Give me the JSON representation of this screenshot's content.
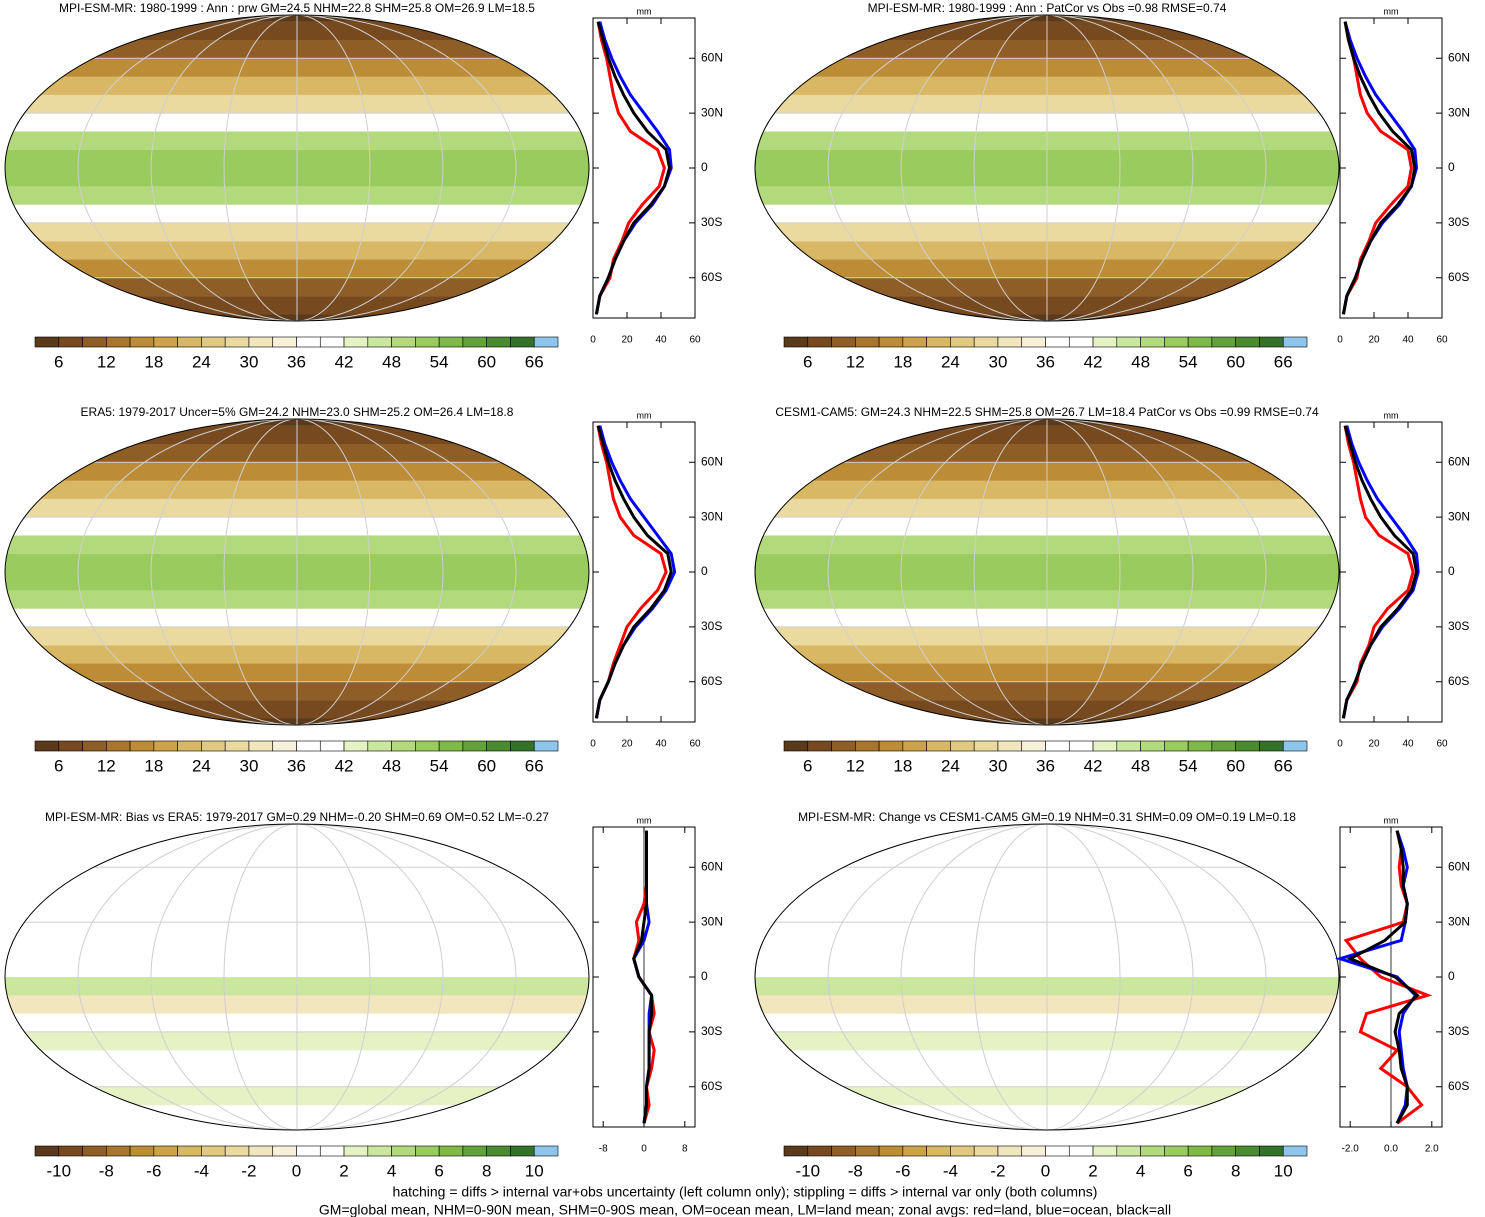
{
  "panels": [
    {
      "title": "MPI-ESM-MR: 1980-1999 : Ann : prw GM=24.5 NHM=22.8 SHM=25.8 OM=26.9 LM=18.5",
      "colorbar": {
        "colors": [
          "#5a3a1b",
          "#76491f",
          "#8f5d26",
          "#a8752e",
          "#bd8c36",
          "#cca24a",
          "#d8b765",
          "#e2c982",
          "#eadaa0",
          "#f1e6bd",
          "#f7f1da",
          "#ffffff",
          "#ffffff",
          "#e4f2c4",
          "#cbe69e",
          "#b2d97c",
          "#99cb5e",
          "#7fba48",
          "#63a23a",
          "#4a8a30",
          "#34722a",
          "#8ec5ec"
        ],
        "labels": [
          6,
          12,
          18,
          24,
          30,
          36,
          42,
          48,
          54,
          60,
          66
        ]
      },
      "profile": {
        "unit": "mm",
        "xlim": [
          0,
          60
        ],
        "xticks": [
          0,
          20,
          40,
          60
        ],
        "ylim": [
          -82,
          82
        ],
        "yticks": [
          {
            "value": -60,
            "label": "60S"
          },
          {
            "value": -30,
            "label": "30S"
          },
          0,
          {
            "value": 30,
            "label": "30N"
          },
          {
            "value": 60,
            "label": "60N"
          }
        ],
        "lat": [
          -80,
          -70,
          -60,
          -50,
          -40,
          -30,
          -20,
          -10,
          0,
          10,
          20,
          30,
          40,
          50,
          60,
          70,
          80
        ],
        "series": [
          {
            "color": "#ff0000",
            "values": [
              2,
              4,
              10,
              12,
              17,
              21,
              29,
              39,
              42,
              38,
              22,
              15,
              12,
              10,
              8,
              5,
              3
            ]
          },
          {
            "color": "#0000ff",
            "values": [
              2,
              4,
              9,
              13,
              18,
              25,
              35,
              42,
              46,
              45,
              38,
              30,
              22,
              16,
              11,
              7,
              4
            ]
          },
          {
            "color": "#000000",
            "values": [
              2,
              4,
              9,
              13,
              18,
              24,
              34,
              42,
              45,
              43,
              32,
              24,
              18,
              13,
              9,
              6,
              3
            ]
          }
        ]
      }
    },
    {
      "title": "MPI-ESM-MR: 1980-1999 : Ann : PatCor vs Obs =0.98 RMSE=0.74",
      "colorbar": {
        "colors": [
          "#5a3a1b",
          "#76491f",
          "#8f5d26",
          "#a8752e",
          "#bd8c36",
          "#cca24a",
          "#d8b765",
          "#e2c982",
          "#eadaa0",
          "#f1e6bd",
          "#f7f1da",
          "#ffffff",
          "#ffffff",
          "#e4f2c4",
          "#cbe69e",
          "#b2d97c",
          "#99cb5e",
          "#7fba48",
          "#63a23a",
          "#4a8a30",
          "#34722a",
          "#8ec5ec"
        ],
        "labels": [
          6,
          12,
          18,
          24,
          30,
          36,
          42,
          48,
          54,
          60,
          66
        ]
      },
      "profile": {
        "unit": "mm",
        "xlim": [
          0,
          60
        ],
        "xticks": [
          0,
          20,
          40,
          60
        ],
        "ylim": [
          -82,
          82
        ],
        "yticks": [
          {
            "value": -60,
            "label": "60S"
          },
          {
            "value": -30,
            "label": "30S"
          },
          0,
          {
            "value": 30,
            "label": "30N"
          },
          {
            "value": 60,
            "label": "60N"
          }
        ],
        "lat": [
          -80,
          -70,
          -60,
          -50,
          -40,
          -30,
          -20,
          -10,
          0,
          10,
          20,
          30,
          40,
          50,
          60,
          70,
          80
        ],
        "series": [
          {
            "color": "#ff0000",
            "values": [
              2,
              4,
              10,
              12,
              17,
              21,
              30,
              40,
              42,
              40,
              24,
              16,
              12,
              10,
              8,
              5,
              3
            ]
          },
          {
            "color": "#0000ff",
            "values": [
              2,
              4,
              9,
              13,
              18,
              25,
              35,
              42,
              45,
              44,
              37,
              29,
              21,
              15,
              10,
              6,
              3
            ]
          },
          {
            "color": "#000000",
            "values": [
              2,
              4,
              9,
              13,
              18,
              24,
              34,
              42,
              44,
              42,
              31,
              23,
              17,
              12,
              8,
              5,
              3
            ]
          }
        ]
      }
    },
    {
      "title": "ERA5: 1979-2017 Uncer=5% GM=24.2 NHM=23.0 SHM=25.2 OM=26.4 LM=18.8",
      "colorbar": {
        "colors": [
          "#5a3a1b",
          "#76491f",
          "#8f5d26",
          "#a8752e",
          "#bd8c36",
          "#cca24a",
          "#d8b765",
          "#e2c982",
          "#eadaa0",
          "#f1e6bd",
          "#f7f1da",
          "#ffffff",
          "#ffffff",
          "#e4f2c4",
          "#cbe69e",
          "#b2d97c",
          "#99cb5e",
          "#7fba48",
          "#63a23a",
          "#4a8a30",
          "#34722a",
          "#8ec5ec"
        ],
        "labels": [
          6,
          12,
          18,
          24,
          30,
          36,
          42,
          48,
          54,
          60,
          66
        ]
      },
      "profile": {
        "unit": "mm",
        "xlim": [
          0,
          60
        ],
        "xticks": [
          0,
          20,
          40,
          60
        ],
        "ylim": [
          -82,
          82
        ],
        "yticks": [
          {
            "value": -60,
            "label": "60S"
          },
          {
            "value": -30,
            "label": "30S"
          },
          0,
          {
            "value": 30,
            "label": "30N"
          },
          {
            "value": 60,
            "label": "60N"
          }
        ],
        "lat": [
          -80,
          -70,
          -60,
          -50,
          -40,
          -30,
          -20,
          -10,
          0,
          10,
          20,
          30,
          40,
          50,
          60,
          70,
          80
        ],
        "series": [
          {
            "color": "#ff0000",
            "values": [
              2,
              4,
              9,
              12,
              16,
              20,
              28,
              38,
              43,
              40,
              24,
              16,
              12,
              10,
              8,
              5,
              3
            ]
          },
          {
            "color": "#0000ff",
            "values": [
              2,
              4,
              9,
              13,
              18,
              25,
              35,
              43,
              48,
              46,
              38,
              30,
              22,
              16,
              11,
              7,
              4
            ]
          },
          {
            "color": "#000000",
            "values": [
              2,
              4,
              9,
              13,
              18,
              24,
              34,
              42,
              46,
              44,
              32,
              24,
              18,
              13,
              9,
              6,
              3
            ]
          }
        ]
      }
    },
    {
      "title": "CESM1-CAM5: GM=24.3 NHM=22.5 SHM=25.8 OM=26.7 LM=18.4 PatCor vs Obs =0.99 RMSE=0.74",
      "colorbar": {
        "colors": [
          "#5a3a1b",
          "#76491f",
          "#8f5d26",
          "#a8752e",
          "#bd8c36",
          "#cca24a",
          "#d8b765",
          "#e2c982",
          "#eadaa0",
          "#f1e6bd",
          "#f7f1da",
          "#ffffff",
          "#ffffff",
          "#e4f2c4",
          "#cbe69e",
          "#b2d97c",
          "#99cb5e",
          "#7fba48",
          "#63a23a",
          "#4a8a30",
          "#34722a",
          "#8ec5ec"
        ],
        "labels": [
          6,
          12,
          18,
          24,
          30,
          36,
          42,
          48,
          54,
          60,
          66
        ]
      },
      "profile": {
        "unit": "mm",
        "xlim": [
          0,
          60
        ],
        "xticks": [
          0,
          20,
          40,
          60
        ],
        "ylim": [
          -82,
          82
        ],
        "yticks": [
          {
            "value": -60,
            "label": "60S"
          },
          {
            "value": -30,
            "label": "30S"
          },
          0,
          {
            "value": 30,
            "label": "30N"
          },
          {
            "value": 60,
            "label": "60N"
          }
        ],
        "lat": [
          -80,
          -70,
          -60,
          -50,
          -40,
          -30,
          -20,
          -10,
          0,
          10,
          20,
          30,
          40,
          50,
          60,
          70,
          80
        ],
        "series": [
          {
            "color": "#ff0000",
            "values": [
              2,
              4,
              10,
              12,
              17,
              20,
              28,
              40,
              43,
              40,
              23,
              15,
              12,
              10,
              8,
              5,
              3
            ]
          },
          {
            "color": "#0000ff",
            "values": [
              2,
              4,
              9,
              13,
              18,
              25,
              35,
              43,
              46,
              45,
              38,
              30,
              22,
              16,
              11,
              7,
              4
            ]
          },
          {
            "color": "#000000",
            "values": [
              2,
              4,
              9,
              13,
              18,
              24,
              34,
              42,
              45,
              43,
              32,
              24,
              18,
              13,
              9,
              6,
              3
            ]
          }
        ]
      }
    },
    {
      "title": "MPI-ESM-MR: Bias vs ERA5: 1979-2017 GM=0.29 NHM=-0.20 SHM=0.69 OM=0.52 LM=-0.27",
      "colorbar": {
        "colors": [
          "#5a3a1b",
          "#76491f",
          "#8f5d26",
          "#a8752e",
          "#bd8c36",
          "#cca24a",
          "#d8b765",
          "#e2c982",
          "#eadaa0",
          "#f1e6bd",
          "#f7f1da",
          "#ffffff",
          "#ffffff",
          "#e4f2c4",
          "#cbe69e",
          "#b2d97c",
          "#99cb5e",
          "#7fba48",
          "#63a23a",
          "#4a8a30",
          "#34722a",
          "#8ec5ec"
        ],
        "labels": [
          -10,
          -8,
          -6,
          -4,
          -2,
          0,
          2,
          4,
          6,
          8,
          10
        ]
      },
      "profile": {
        "unit": "mm",
        "xlim": [
          -10,
          10
        ],
        "xticks": [
          -8,
          0,
          8
        ],
        "ylim": [
          -82,
          82
        ],
        "yticks": [
          {
            "value": -60,
            "label": "60S"
          },
          {
            "value": -30,
            "label": "30S"
          },
          0,
          {
            "value": 30,
            "label": "30N"
          },
          {
            "value": 60,
            "label": "60N"
          }
        ],
        "lat": [
          -80,
          -70,
          -60,
          -50,
          -40,
          -30,
          -20,
          -10,
          0,
          10,
          20,
          30,
          40,
          50,
          60,
          70,
          80
        ],
        "series": [
          {
            "color": "#ff0000",
            "values": [
              0,
              1,
              0.5,
              1.5,
              2,
              1,
              2,
              1.5,
              -1,
              -2,
              -1,
              -1.5,
              0,
              0.5,
              0.5,
              0.5,
              0.5
            ]
          },
          {
            "color": "#0000ff",
            "values": [
              0,
              0.5,
              0.5,
              1,
              1,
              1,
              1,
              1.5,
              -1,
              -2,
              0,
              1,
              0.5,
              0.5,
              0.5,
              0.5,
              0.5
            ]
          },
          {
            "color": "#000000",
            "values": [
              0,
              0.5,
              0.5,
              1,
              1,
              1,
              1.5,
              1.5,
              -1,
              -2,
              -0.5,
              0,
              0.5,
              0.5,
              0.5,
              0.5,
              0.5
            ]
          }
        ]
      }
    },
    {
      "title": "MPI-ESM-MR: Change vs CESM1-CAM5 GM=0.19 NHM=0.31 SHM=0.09 OM=0.19 LM=0.18",
      "colorbar": {
        "colors": [
          "#5a3a1b",
          "#76491f",
          "#8f5d26",
          "#a8752e",
          "#bd8c36",
          "#cca24a",
          "#d8b765",
          "#e2c982",
          "#eadaa0",
          "#f1e6bd",
          "#f7f1da",
          "#ffffff",
          "#ffffff",
          "#e4f2c4",
          "#cbe69e",
          "#b2d97c",
          "#99cb5e",
          "#7fba48",
          "#63a23a",
          "#4a8a30",
          "#34722a",
          "#8ec5ec"
        ],
        "labels": [
          -10,
          -8,
          -6,
          -4,
          -2,
          0,
          2,
          4,
          6,
          8,
          10
        ]
      },
      "profile": {
        "unit": "mm",
        "xlim": [
          -2.5,
          2.5
        ],
        "xticks": [
          {
            "value": -2,
            "label": "-2.0"
          },
          {
            "value": 0,
            "label": "0.0"
          },
          {
            "value": 2,
            "label": "2.0"
          }
        ],
        "ylim": [
          -82,
          82
        ],
        "yticks": [
          {
            "value": -60,
            "label": "60S"
          },
          {
            "value": -30,
            "label": "30S"
          },
          0,
          {
            "value": 30,
            "label": "30N"
          },
          {
            "value": 60,
            "label": "60N"
          }
        ],
        "lat": [
          -80,
          -70,
          -60,
          -50,
          -40,
          -30,
          -20,
          -10,
          0,
          10,
          20,
          30,
          40,
          50,
          60,
          70,
          80
        ],
        "series": [
          {
            "color": "#ff0000",
            "values": [
              0.3,
              1.5,
              0.8,
              -0.5,
              0.3,
              -1.5,
              -1.2,
              1.8,
              -0.5,
              -1.5,
              -2.2,
              0.6,
              0.8,
              0.5,
              0.4,
              0.5,
              0.3
            ]
          },
          {
            "color": "#0000ff",
            "values": [
              0.3,
              0.7,
              0.8,
              0.6,
              0.5,
              0.4,
              0.6,
              1.2,
              0.3,
              -2.5,
              0.5,
              0.7,
              0.8,
              0.6,
              0.8,
              0.6,
              0.3
            ]
          },
          {
            "color": "#000000",
            "values": [
              0.3,
              0.8,
              0.8,
              0.5,
              0.4,
              0.2,
              0.4,
              1.3,
              0.2,
              -2,
              -0.3,
              0.7,
              0.8,
              0.6,
              0.6,
              0.5,
              0.3
            ]
          }
        ]
      }
    }
  ],
  "footer": [
    "hatching = diffs > internal var+obs uncertainty (left column only); stippling = diffs > internal var only (both columns)",
    "GM=global mean, NHM=0-90N mean, SHM=0-90S mean, OM=ocean mean, LM=land mean; zonal avgs: red=land, blue=ocean, black=all"
  ]
}
